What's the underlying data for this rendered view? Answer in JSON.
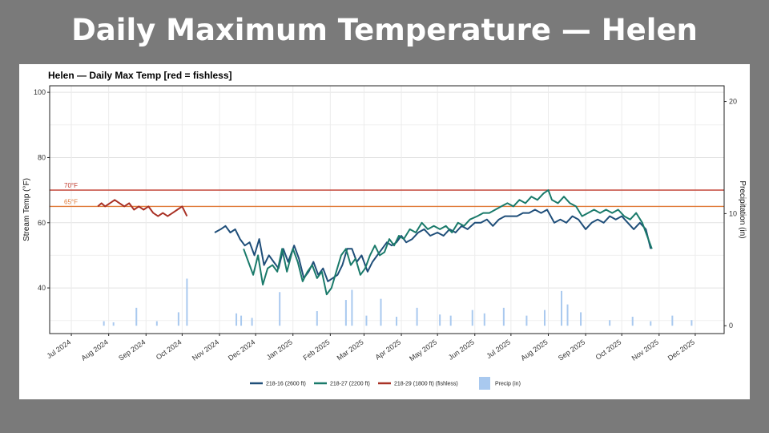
{
  "slide": {
    "title": "Daily Maximum Temperature — Helen"
  },
  "chart_data": {
    "type": "line",
    "title": "Helen — Daily Max Temp   [red = fishless]",
    "ylabel": "Stream Temp (°F)",
    "y2label": "Precipitation (in)",
    "ylim": [
      26,
      102
    ],
    "y2lim": [
      -0.7,
      21.4
    ],
    "yticks": [
      40,
      60,
      80,
      100
    ],
    "y2ticks": [
      0,
      10,
      20
    ],
    "xlim": [
      "2024-06-13",
      "2025-12-25"
    ],
    "xticks": [
      "2024-07-01",
      "2024-08-01",
      "2024-09-01",
      "2024-10-01",
      "2024-11-01",
      "2024-12-01",
      "2025-01-01",
      "2025-02-01",
      "2025-03-01",
      "2025-04-01",
      "2025-05-01",
      "2025-06-01",
      "2025-07-01",
      "2025-08-01",
      "2025-09-01",
      "2025-10-01",
      "2025-11-01",
      "2025-12-01"
    ],
    "xticklabels": [
      "Jul 2024",
      "Aug 2024",
      "Sep 2024",
      "Oct 2024",
      "Nov 2024",
      "Dec 2024",
      "Jan 2025",
      "Feb 2025",
      "Mar 2025",
      "Apr 2025",
      "May 2025",
      "Jun 2025",
      "Jul 2025",
      "Aug 2025",
      "Sep 2025",
      "Oct 2025",
      "Nov 2025",
      "Dec 2025"
    ],
    "grid": true,
    "legend_position": "bottom",
    "reference_lines": [
      {
        "label": "70°F",
        "value": 70,
        "color": "#c0392b"
      },
      {
        "label": "65°F",
        "value": 65,
        "color": "#e07b39"
      }
    ],
    "series": [
      {
        "name": "218-16 (2600 ft)",
        "color": "#1f4e79",
        "x": [
          "2024-10-28",
          "2024-11-02",
          "2024-11-06",
          "2024-11-10",
          "2024-11-14",
          "2024-11-18",
          "2024-11-22",
          "2024-11-26",
          "2024-11-30",
          "2024-12-04",
          "2024-12-08",
          "2024-12-12",
          "2024-12-16",
          "2024-12-20",
          "2024-12-24",
          "2024-12-28",
          "2025-01-02",
          "2025-01-06",
          "2025-01-10",
          "2025-01-14",
          "2025-01-18",
          "2025-01-22",
          "2025-01-26",
          "2025-01-30",
          "2025-02-03",
          "2025-02-07",
          "2025-02-11",
          "2025-02-15",
          "2025-02-19",
          "2025-02-23",
          "2025-02-27",
          "2025-03-04",
          "2025-03-08",
          "2025-03-12",
          "2025-03-16",
          "2025-03-20",
          "2025-03-24",
          "2025-03-28",
          "2025-04-01",
          "2025-04-05",
          "2025-04-10",
          "2025-04-15",
          "2025-04-20",
          "2025-04-25",
          "2025-05-01",
          "2025-05-06",
          "2025-05-11",
          "2025-05-16",
          "2025-05-21",
          "2025-05-26",
          "2025-06-01",
          "2025-06-06",
          "2025-06-11",
          "2025-06-16",
          "2025-06-21",
          "2025-06-26",
          "2025-07-01",
          "2025-07-06",
          "2025-07-11",
          "2025-07-16",
          "2025-07-21",
          "2025-07-26",
          "2025-07-31",
          "2025-08-03",
          "2025-08-06",
          "2025-08-11",
          "2025-08-16",
          "2025-08-21",
          "2025-08-26",
          "2025-09-01",
          "2025-09-06",
          "2025-09-11",
          "2025-09-16",
          "2025-09-21",
          "2025-09-26",
          "2025-10-01",
          "2025-10-06",
          "2025-10-11",
          "2025-10-16",
          "2025-10-21",
          "2025-10-25"
        ],
        "values": [
          57,
          58,
          59,
          57,
          58,
          55,
          53,
          54,
          50,
          55,
          47,
          50,
          48,
          46,
          52,
          48,
          53,
          49,
          43,
          45,
          48,
          44,
          46,
          42,
          43,
          44,
          47,
          52,
          52,
          48,
          50,
          45,
          48,
          50,
          52,
          54,
          53,
          54,
          56,
          54,
          55,
          57,
          58,
          56,
          57,
          56,
          58,
          57,
          59,
          58,
          60,
          60,
          61,
          59,
          61,
          62,
          62,
          62,
          63,
          63,
          64,
          63,
          64,
          62,
          60,
          61,
          60,
          62,
          61,
          58,
          60,
          61,
          60,
          62,
          61,
          62,
          60,
          58,
          60,
          58,
          52
        ]
      },
      {
        "name": "218-27 (2200 ft)",
        "color": "#1a7a6a",
        "x": [
          "2024-11-21",
          "2024-11-25",
          "2024-11-29",
          "2024-12-03",
          "2024-12-07",
          "2024-12-11",
          "2024-12-15",
          "2024-12-19",
          "2024-12-23",
          "2024-12-27",
          "2025-01-01",
          "2025-01-05",
          "2025-01-09",
          "2025-01-13",
          "2025-01-17",
          "2025-01-21",
          "2025-01-25",
          "2025-01-29",
          "2025-02-02",
          "2025-02-06",
          "2025-02-10",
          "2025-02-14",
          "2025-02-18",
          "2025-02-22",
          "2025-02-26",
          "2025-03-02",
          "2025-03-06",
          "2025-03-10",
          "2025-03-14",
          "2025-03-18",
          "2025-03-22",
          "2025-03-26",
          "2025-03-30",
          "2025-04-03",
          "2025-04-08",
          "2025-04-13",
          "2025-04-18",
          "2025-04-23",
          "2025-04-28",
          "2025-05-03",
          "2025-05-08",
          "2025-05-13",
          "2025-05-18",
          "2025-05-23",
          "2025-05-28",
          "2025-06-03",
          "2025-06-08",
          "2025-06-13",
          "2025-06-18",
          "2025-06-23",
          "2025-06-28",
          "2025-07-03",
          "2025-07-08",
          "2025-07-13",
          "2025-07-18",
          "2025-07-23",
          "2025-07-28",
          "2025-08-01",
          "2025-08-04",
          "2025-08-09",
          "2025-08-14",
          "2025-08-19",
          "2025-08-24",
          "2025-08-29",
          "2025-09-03",
          "2025-09-08",
          "2025-09-13",
          "2025-09-18",
          "2025-09-23",
          "2025-09-28",
          "2025-10-03",
          "2025-10-08",
          "2025-10-13",
          "2025-10-18",
          "2025-10-23",
          "2025-10-26"
        ],
        "values": [
          52,
          48,
          44,
          50,
          41,
          46,
          47,
          45,
          52,
          45,
          52,
          48,
          42,
          45,
          47,
          43,
          45,
          38,
          40,
          45,
          50,
          52,
          47,
          49,
          44,
          46,
          50,
          53,
          50,
          51,
          55,
          53,
          56,
          55,
          58,
          57,
          60,
          58,
          59,
          58,
          59,
          57,
          60,
          59,
          61,
          62,
          63,
          63,
          64,
          65,
          66,
          65,
          67,
          66,
          68,
          67,
          69,
          70,
          67,
          66,
          68,
          66,
          65,
          62,
          63,
          64,
          63,
          64,
          63,
          64,
          62,
          61,
          63,
          60,
          55,
          52
        ]
      },
      {
        "name": "218-29 (1800 ft) (fishless)",
        "color": "#a93226",
        "x": [
          "2024-07-23",
          "2024-07-26",
          "2024-07-29",
          "2024-08-02",
          "2024-08-06",
          "2024-08-10",
          "2024-08-14",
          "2024-08-18",
          "2024-08-22",
          "2024-08-26",
          "2024-08-30",
          "2024-09-03",
          "2024-09-07",
          "2024-09-11",
          "2024-09-15",
          "2024-09-19",
          "2024-09-23",
          "2024-09-27",
          "2024-10-01",
          "2024-10-05"
        ],
        "values": [
          65,
          66,
          65,
          66,
          67,
          66,
          65,
          66,
          64,
          65,
          64,
          65,
          63,
          62,
          63,
          62,
          63,
          64,
          65,
          62
        ]
      }
    ],
    "precip": {
      "name": "Precip (in)",
      "color": "#a9c9ef",
      "x": [
        "2024-07-28",
        "2024-08-05",
        "2024-08-24",
        "2024-09-10",
        "2024-09-28",
        "2024-10-05",
        "2024-11-15",
        "2024-11-19",
        "2024-11-28",
        "2024-12-21",
        "2025-01-21",
        "2025-02-14",
        "2025-02-19",
        "2025-03-03",
        "2025-03-15",
        "2025-03-28",
        "2025-04-14",
        "2025-05-03",
        "2025-05-12",
        "2025-05-30",
        "2025-06-09",
        "2025-06-25",
        "2025-07-14",
        "2025-07-29",
        "2025-08-12",
        "2025-08-17",
        "2025-08-28",
        "2025-09-21",
        "2025-10-10",
        "2025-10-25",
        "2025-11-12",
        "2025-11-28"
      ],
      "values": [
        0.4,
        0.3,
        1.6,
        0.4,
        1.2,
        4.2,
        1.1,
        0.9,
        0.7,
        3.0,
        1.3,
        2.3,
        3.2,
        0.9,
        2.4,
        0.8,
        1.6,
        1.0,
        0.9,
        1.4,
        1.1,
        1.6,
        0.9,
        1.4,
        3.1,
        1.9,
        1.2,
        0.5,
        0.8,
        0.4,
        0.9,
        0.5
      ]
    }
  }
}
